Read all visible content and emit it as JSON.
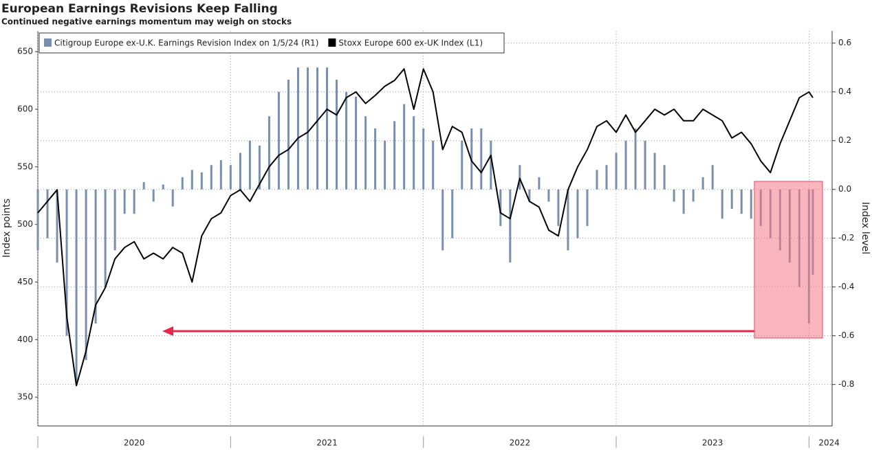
{
  "chart_data": {
    "type": "bar-line",
    "title": "European Earnings Revisions Keep Falling",
    "subtitle": "Continued negative earnings momentum may weigh on stocks",
    "y_label": "Index points",
    "y2_label": "Index level",
    "x": [
      2020.0,
      2020.05,
      2020.1,
      2020.15,
      2020.2,
      2020.25,
      2020.3,
      2020.35,
      2020.4,
      2020.45,
      2020.5,
      2020.55,
      2020.6,
      2020.65,
      2020.7,
      2020.75,
      2020.8,
      2020.85,
      2020.9,
      2020.95,
      2021.0,
      2021.05,
      2021.1,
      2021.15,
      2021.2,
      2021.25,
      2021.3,
      2021.35,
      2021.4,
      2021.45,
      2021.5,
      2021.55,
      2021.6,
      2021.65,
      2021.7,
      2021.75,
      2021.8,
      2021.85,
      2021.9,
      2021.95,
      2022.0,
      2022.05,
      2022.1,
      2022.15,
      2022.2,
      2022.25,
      2022.3,
      2022.35,
      2022.4,
      2022.45,
      2022.5,
      2022.55,
      2022.6,
      2022.65,
      2022.7,
      2022.75,
      2022.8,
      2022.85,
      2022.9,
      2022.95,
      2023.0,
      2023.05,
      2023.1,
      2023.15,
      2023.2,
      2023.25,
      2023.3,
      2023.35,
      2023.4,
      2023.45,
      2023.5,
      2023.55,
      2023.6,
      2023.65,
      2023.7,
      2023.75,
      2023.8,
      2023.85,
      2023.9,
      2023.95,
      2024.0,
      2024.02
    ],
    "series": [
      {
        "name": "Citigroup Europe ex-U.K. Earnings Revision Index on 1/5/24 (R1)",
        "color": "#7a8fab",
        "axis": "y2",
        "kind": "bar",
        "values": [
          -0.25,
          -0.2,
          -0.3,
          -0.6,
          -0.8,
          -0.7,
          -0.55,
          -0.4,
          -0.25,
          -0.1,
          -0.1,
          0.03,
          -0.05,
          0.02,
          -0.07,
          0.05,
          0.08,
          0.07,
          0.1,
          0.12,
          0.1,
          0.15,
          0.2,
          0.18,
          0.3,
          0.4,
          0.45,
          0.5,
          0.5,
          0.5,
          0.5,
          0.45,
          0.4,
          0.38,
          0.3,
          0.25,
          0.2,
          0.28,
          0.35,
          0.3,
          0.25,
          0.2,
          -0.25,
          -0.2,
          0.2,
          0.25,
          0.25,
          0.2,
          -0.15,
          -0.3,
          0.1,
          -0.05,
          0.05,
          -0.05,
          -0.15,
          -0.25,
          -0.2,
          -0.15,
          0.08,
          0.1,
          0.15,
          0.2,
          0.25,
          0.2,
          0.15,
          0.1,
          -0.05,
          -0.1,
          -0.05,
          0.05,
          0.1,
          -0.12,
          -0.08,
          -0.1,
          -0.12,
          -0.15,
          -0.2,
          -0.25,
          -0.3,
          -0.4,
          -0.55,
          -0.35
        ]
      },
      {
        "name": "Stoxx Europe 600 ex-UK Index (L1)",
        "color": "#000000",
        "axis": "y",
        "kind": "line",
        "values": [
          510,
          520,
          530,
          420,
          360,
          390,
          430,
          445,
          470,
          480,
          485,
          470,
          475,
          470,
          480,
          475,
          450,
          490,
          505,
          510,
          525,
          530,
          520,
          535,
          550,
          560,
          565,
          575,
          580,
          590,
          600,
          595,
          610,
          615,
          605,
          612,
          620,
          625,
          635,
          600,
          635,
          615,
          565,
          585,
          580,
          555,
          545,
          560,
          510,
          505,
          540,
          520,
          515,
          495,
          490,
          530,
          550,
          565,
          585,
          590,
          580,
          595,
          580,
          590,
          600,
          595,
          600,
          590,
          590,
          600,
          595,
          590,
          575,
          580,
          570,
          555,
          545,
          570,
          590,
          610,
          615,
          610
        ]
      }
    ],
    "xlim": [
      2020,
      2024.12
    ],
    "xticks": [
      2020,
      2021,
      2022,
      2023,
      2024
    ],
    "ylim": [
      325,
      668
    ],
    "yticks": [
      350,
      400,
      450,
      500,
      550,
      600,
      650
    ],
    "y2lim": [
      -0.97,
      0.65
    ],
    "y2ticks": [
      -0.8,
      -0.6,
      -0.4,
      -0.2,
      {
        "value": 0,
        "label": "0.0"
      },
      0.2,
      0.4,
      0.6
    ],
    "grid": true
  }
}
